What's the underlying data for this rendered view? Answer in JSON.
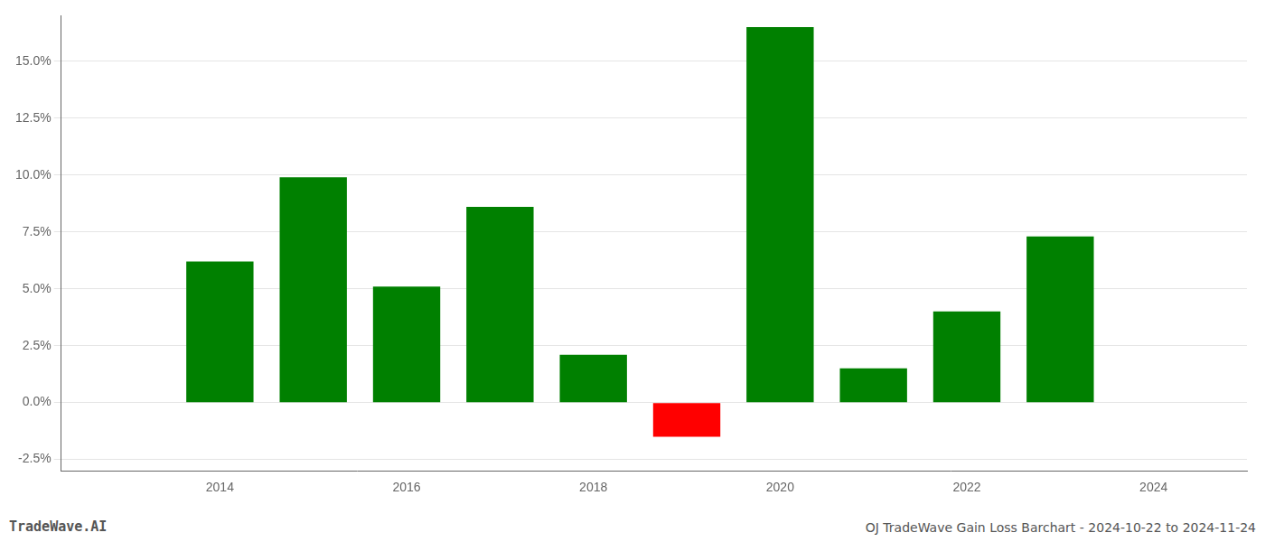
{
  "chart_data": {
    "type": "bar",
    "title": "OJ TradeWave Gain Loss Barchart - 2024-10-22 to 2024-11-24",
    "annotations": [
      "TradeWave.AI"
    ],
    "x": [
      2014,
      2015,
      2016,
      2017,
      2018,
      2019,
      2020,
      2021,
      2022,
      2023
    ],
    "values": [
      0.062,
      0.099,
      0.051,
      0.086,
      0.021,
      -0.015,
      0.165,
      0.015,
      0.04,
      0.073
    ],
    "colors": [
      "#008000",
      "#008000",
      "#008000",
      "#008000",
      "#008000",
      "#ff0000",
      "#008000",
      "#008000",
      "#008000",
      "#008000"
    ],
    "xlim": [
      2012.3,
      2025.0
    ],
    "xticks": [
      2014,
      2016,
      2018,
      2020,
      2022,
      2024
    ],
    "ylim": [
      -0.03,
      0.17
    ],
    "yticks": [
      {
        "value": -0.025,
        "label": "-2.5%"
      },
      {
        "value": 0.0,
        "label": "0.0%"
      },
      {
        "value": 0.025,
        "label": "2.5%"
      },
      {
        "value": 0.05,
        "label": "5.0%"
      },
      {
        "value": 0.075,
        "label": "7.5%"
      },
      {
        "value": 0.1,
        "label": "10.0%"
      },
      {
        "value": 0.125,
        "label": "12.5%"
      },
      {
        "value": 0.15,
        "label": "15.0%"
      }
    ],
    "grid": true
  }
}
